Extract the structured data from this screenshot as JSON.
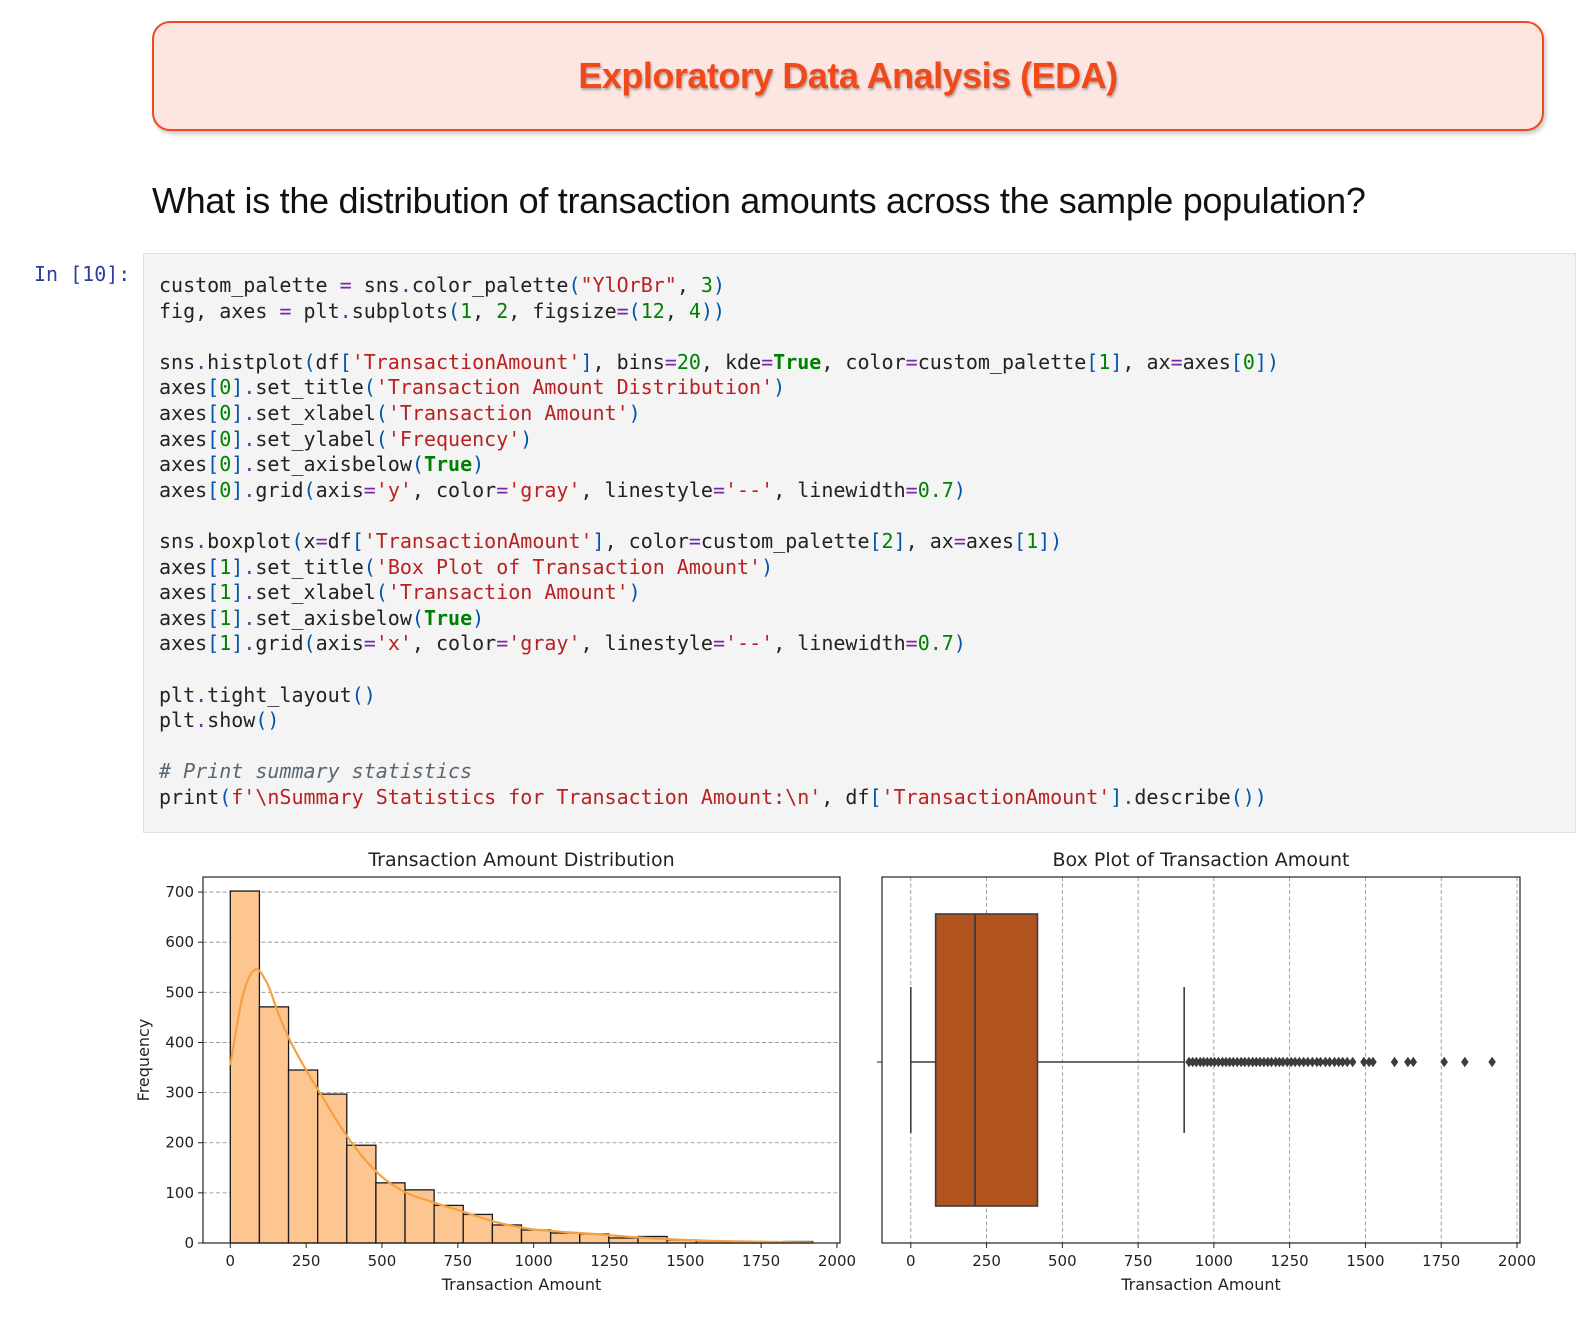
{
  "banner": {
    "title": "Exploratory Data Analysis (EDA)"
  },
  "question": "What is the distribution of transaction amounts across the sample population?",
  "cell": {
    "prompt": "In [10]:",
    "code_lines": [
      "custom_palette = sns.color_palette(\"YlOrBr\", 3)",
      "fig, axes = plt.subplots(1, 2, figsize=(12, 4))",
      "",
      "sns.histplot(df['TransactionAmount'], bins=20, kde=True, color=custom_palette[1], ax=axes[0])",
      "axes[0].set_title('Transaction Amount Distribution')",
      "axes[0].set_xlabel('Transaction Amount')",
      "axes[0].set_ylabel('Frequency')",
      "axes[0].set_axisbelow(True)",
      "axes[0].grid(axis='y', color='gray', linestyle='--', linewidth=0.7)",
      "",
      "sns.boxplot(x=df['TransactionAmount'], color=custom_palette[2], ax=axes[1])",
      "axes[1].set_title('Box Plot of Transaction Amount')",
      "axes[1].set_xlabel('Transaction Amount')",
      "axes[1].set_axisbelow(True)",
      "axes[1].grid(axis='x', color='gray', linestyle='--', linewidth=0.7)",
      "",
      "plt.tight_layout()",
      "plt.show()",
      "",
      "# Print summary statistics",
      "print(f'\\nSummary Statistics for Transaction Amount:\\n', df['TransactionAmount'].describe())"
    ]
  },
  "colors": {
    "banner_accent": "#f04a1c",
    "banner_bg": "#fde5e1",
    "hist_fill": "#fdc691",
    "kde_line": "#f7a043",
    "box_fill": "#b0531e",
    "code_bg": "#f4f4f4"
  },
  "chart_data": [
    {
      "type": "bar",
      "title": "Transaction Amount Distribution",
      "xlabel": "Transaction Amount",
      "ylabel": "Frequency",
      "xlim": [
        -90,
        2010
      ],
      "ylim": [
        0,
        730
      ],
      "xticks": [
        0,
        250,
        500,
        750,
        1000,
        1250,
        1500,
        1750,
        2000
      ],
      "yticks": [
        0,
        100,
        200,
        300,
        400,
        500,
        600,
        700
      ],
      "grid": "y",
      "bin_start": 0,
      "bin_width": 96,
      "values": [
        702,
        471,
        345,
        297,
        195,
        120,
        106,
        75,
        57,
        36,
        26,
        20,
        18,
        10,
        13,
        6,
        4,
        3,
        2,
        3
      ],
      "kde": {
        "x": [
          0,
          40,
          80,
          120,
          160,
          200,
          250,
          300,
          350,
          400,
          450,
          500,
          550,
          600,
          650,
          700,
          750,
          800,
          850,
          900,
          950,
          1000,
          1100,
          1200,
          1300,
          1400,
          1500,
          1600,
          1700,
          1800,
          1920
        ],
        "y": [
          355,
          490,
          545,
          520,
          455,
          400,
          345,
          295,
          245,
          200,
          162,
          132,
          110,
          95,
          85,
          75,
          66,
          56,
          46,
          38,
          32,
          27,
          22,
          18,
          13,
          9,
          6,
          4,
          3,
          2,
          1
        ]
      }
    },
    {
      "type": "box",
      "title": "Box Plot of Transaction Amount",
      "xlabel": "Transaction Amount",
      "xlim": [
        -95,
        2010
      ],
      "xticks": [
        0,
        250,
        500,
        750,
        1000,
        1250,
        1500,
        1750,
        2000
      ],
      "grid": "x",
      "whisker_low": 0,
      "q1": 82,
      "median": 212,
      "q3": 418,
      "whisker_high": 902,
      "outliers": [
        918,
        930,
        942,
        955,
        966,
        978,
        990,
        1002,
        1015,
        1028,
        1040,
        1052,
        1064,
        1077,
        1090,
        1102,
        1115,
        1128,
        1140,
        1152,
        1165,
        1178,
        1190,
        1204,
        1216,
        1228,
        1242,
        1255,
        1268,
        1282,
        1296,
        1310,
        1325,
        1340,
        1352,
        1368,
        1382,
        1398,
        1412,
        1425,
        1440,
        1458,
        1495,
        1512,
        1525,
        1596,
        1640,
        1658,
        1760,
        1828,
        1918
      ]
    }
  ]
}
